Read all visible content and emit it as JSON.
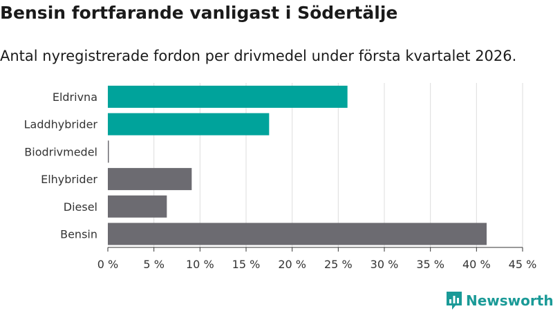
{
  "chart_data": {
    "type": "bar",
    "orientation": "horizontal",
    "title": "Bensin fortfarande vanligast i Södertälje",
    "subtitle": "Antal nyregistrerade fordon per drivmedel under första kvartalet 2026.",
    "categories": [
      "Eldrivna",
      "Laddhybrider",
      "Biodrivmedel",
      "Elhybrider",
      "Diesel",
      "Bensin"
    ],
    "values": [
      26.0,
      17.5,
      0.1,
      9.1,
      6.4,
      41.1
    ],
    "bar_colors": [
      "#00a39b",
      "#00a39b",
      "#6c6b71",
      "#6c6b71",
      "#6c6b71",
      "#6c6b71"
    ],
    "xlim": [
      0,
      45
    ],
    "xticks": [
      0,
      5,
      10,
      15,
      20,
      25,
      30,
      35,
      40,
      45
    ],
    "tick_suffix": " %",
    "xlabel": "",
    "ylabel": "",
    "grid": true,
    "legend": "none"
  },
  "branding": {
    "name": "Newsworthy",
    "color": "#1a9a97",
    "icon": "newsworthy-logo-icon"
  }
}
